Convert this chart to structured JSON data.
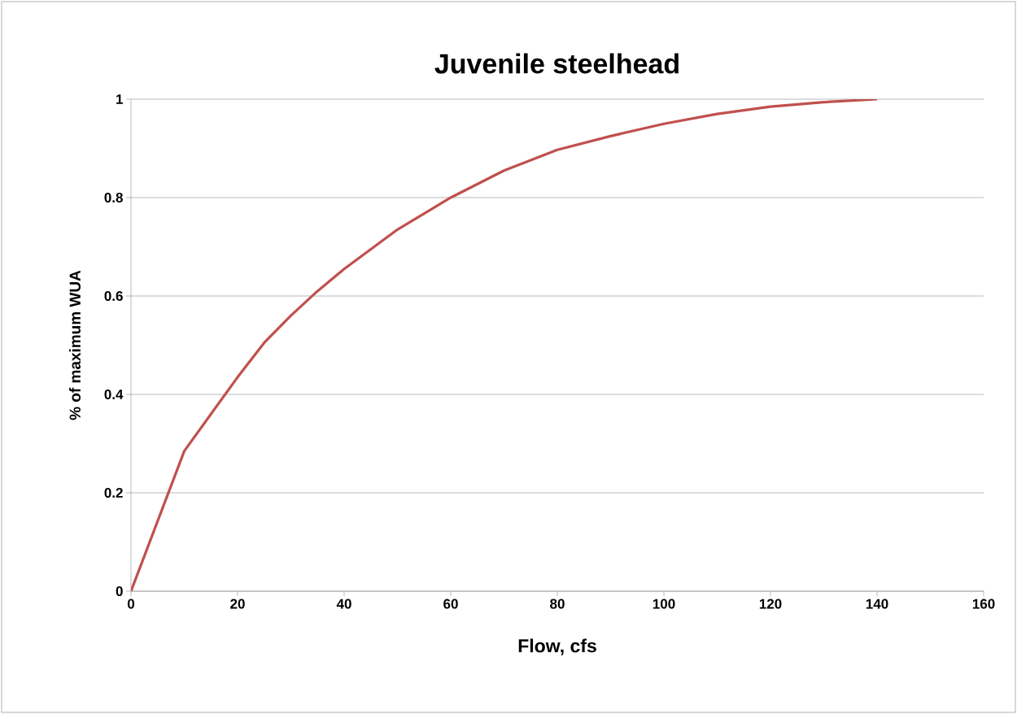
{
  "chart_data": {
    "type": "line",
    "title": "Juvenile steelhead",
    "xlabel": "Flow, cfs",
    "ylabel": "% of maximum WUA",
    "x": [
      0,
      10,
      15,
      20,
      25,
      30,
      35,
      40,
      45,
      50,
      60,
      70,
      80,
      90,
      100,
      110,
      120,
      130,
      140
    ],
    "series": [
      {
        "color": "#c0504d",
        "values": [
          0,
          0.285,
          0.36,
          0.435,
          0.505,
          0.56,
          0.61,
          0.655,
          0.695,
          0.735,
          0.8,
          0.855,
          0.897,
          0.925,
          0.95,
          0.97,
          0.985,
          0.994,
          1.0
        ]
      }
    ],
    "xlim": [
      0,
      160
    ],
    "xticks": [
      0,
      20,
      40,
      60,
      80,
      100,
      120,
      140,
      160
    ],
    "ylim": [
      0,
      1
    ],
    "yticks": [
      0,
      0.2,
      0.4,
      0.6,
      0.8,
      1
    ],
    "grid": "y",
    "marker": "none",
    "line_style": "solid"
  }
}
